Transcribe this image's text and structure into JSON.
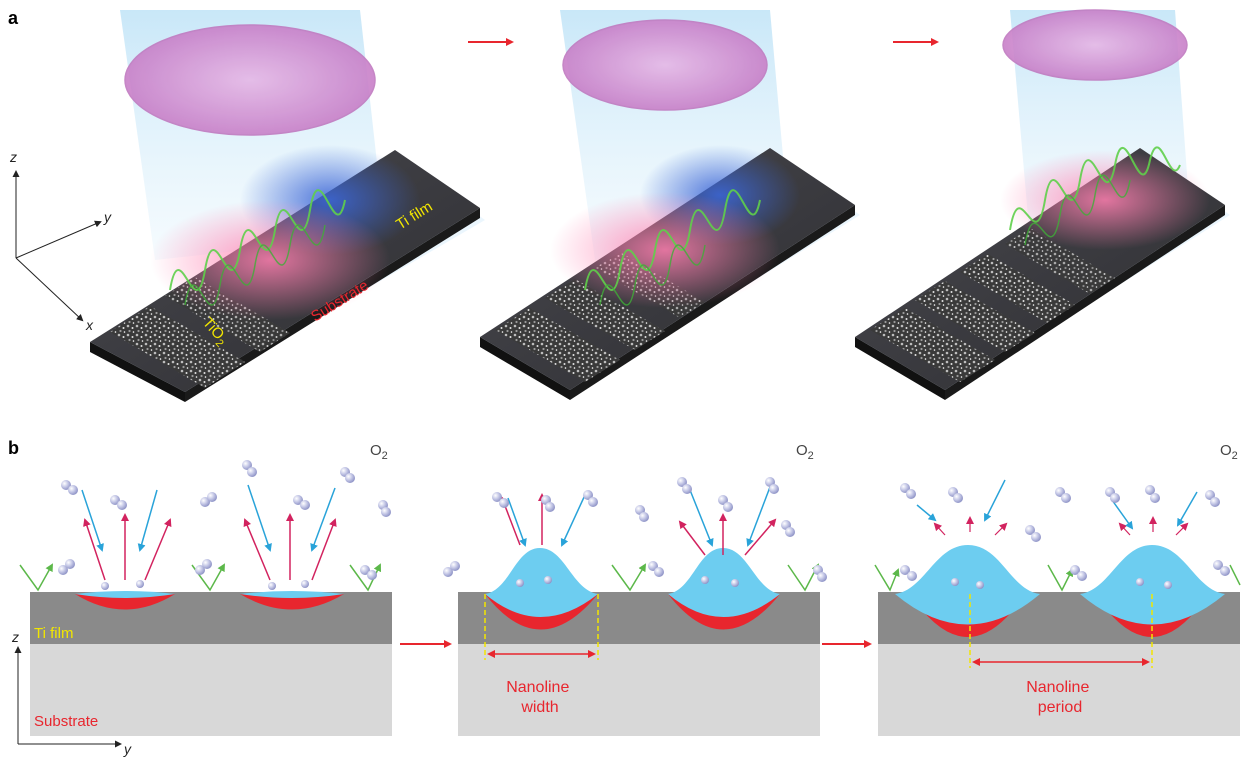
{
  "panel_a": {
    "label": "a",
    "axes": {
      "z": "z",
      "y": "y",
      "x": "x"
    },
    "labels": {
      "ti_film": "Ti film",
      "substrate": "Substrate",
      "tio2_main": "TiO",
      "tio2_sub": "2"
    }
  },
  "panel_b": {
    "label": "b",
    "o2_main": "O",
    "o2_sub": "2",
    "axes": {
      "z": "z",
      "y": "y"
    },
    "labels": {
      "ti_film": "Ti film",
      "substrate": "Substrate"
    },
    "width_label": [
      "Nanoline",
      "width"
    ],
    "period_label": [
      "Nanoline",
      "period"
    ]
  },
  "colors": {
    "accent_red": "#e8262e",
    "label_yellow": "#f2e600",
    "ti_film": "#8a8a8a",
    "substrate": "#d8d8d8",
    "tio2_blue": "#6dcdf0",
    "oxygen_molecule": "#b3b7dc",
    "arrow_blue": "#29a3d9",
    "arrow_magenta": "#d2235f",
    "arrow_green": "#5cb84a",
    "lens": "#d98fd0"
  }
}
